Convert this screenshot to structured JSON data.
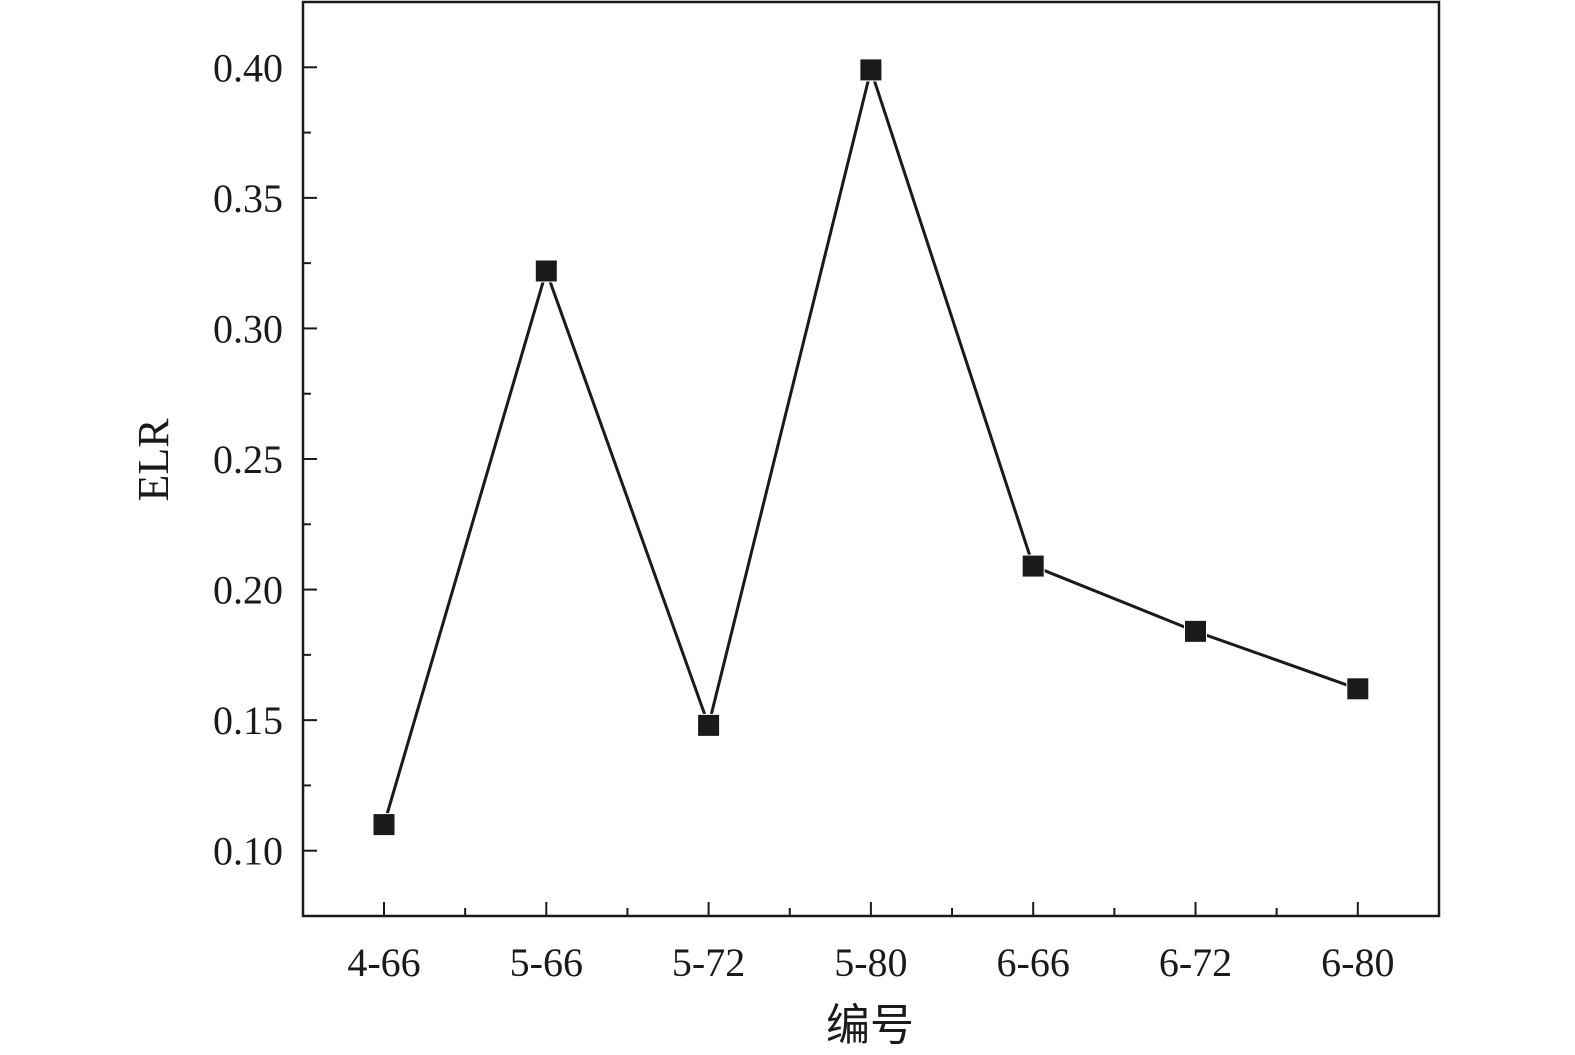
{
  "chart_data": {
    "type": "line",
    "title": "",
    "xlabel": "编号",
    "ylabel": "ELR",
    "categories": [
      "4-66",
      "5-66",
      "5-72",
      "5-80",
      "6-66",
      "6-72",
      "6-80"
    ],
    "series": [
      {
        "values": [
          0.11,
          0.322,
          0.148,
          0.399,
          0.209,
          0.184,
          0.162
        ]
      }
    ],
    "ylim": [
      0.075,
      0.425
    ],
    "yticks": [
      "0.10",
      "0.15",
      "0.20",
      "0.25",
      "0.30",
      "0.35",
      "0.40"
    ],
    "ytick_values": [
      0.1,
      0.15,
      0.2,
      0.25,
      0.3,
      0.35,
      0.4
    ],
    "grid": false,
    "marker": "square",
    "color": "#1a1a1a"
  }
}
